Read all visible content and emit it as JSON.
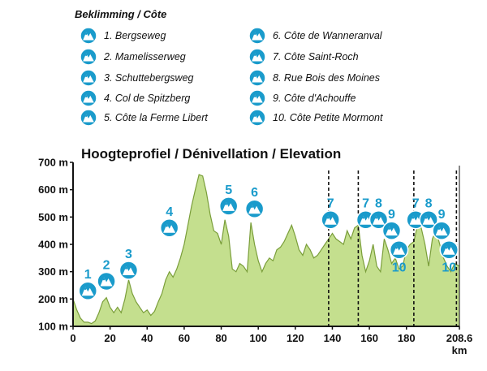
{
  "legend": {
    "title": "Beklimming / Côte",
    "items": [
      {
        "num": 1,
        "label": "1. Bergseweg"
      },
      {
        "num": 2,
        "label": "2. Mamelisserweg"
      },
      {
        "num": 3,
        "label": "3. Schuttebergsweg"
      },
      {
        "num": 4,
        "label": "4. Col de Spitzberg"
      },
      {
        "num": 5,
        "label": "5. Côte la Ferme Libert"
      },
      {
        "num": 6,
        "label": "6. Côte de Wanneranval"
      },
      {
        "num": 7,
        "label": "7. Côte Saint-Roch"
      },
      {
        "num": 8,
        "label": "8. Rue Bois des Moines"
      },
      {
        "num": 9,
        "label": "9. Côte d'Achouffe"
      },
      {
        "num": 10,
        "label": "10. Côte Petite Mormont"
      }
    ]
  },
  "colors": {
    "fill": "#c4df8e",
    "line": "#7a9e3a",
    "marker": "#1a9bcb",
    "axis": "#111111"
  },
  "icons": {
    "climb": "mountain-badge-icon"
  },
  "chart_data": {
    "type": "area",
    "title": "Hoogteprofiel / Dénivellation / Elevation",
    "xlabel": "km",
    "ylabel": "",
    "xlim": [
      0,
      208.6
    ],
    "ylim": [
      100,
      700
    ],
    "yticks": [
      100,
      200,
      300,
      400,
      500,
      600,
      700
    ],
    "ytick_labels": [
      "100 m",
      "200 m",
      "300 m",
      "400 m",
      "500 m",
      "600 m",
      "700 m"
    ],
    "xticks": [
      0,
      20,
      40,
      60,
      80,
      100,
      120,
      140,
      160,
      180,
      208.6
    ],
    "xtick_labels": [
      "0",
      "20",
      "40",
      "60",
      "80",
      "100",
      "120",
      "140",
      "160",
      "180",
      "208.6"
    ],
    "local_lap_lines_km": [
      138,
      154,
      184,
      207
    ],
    "profile": {
      "x": [
        0,
        2,
        4,
        6,
        8,
        10,
        12,
        14,
        16,
        18,
        20,
        22,
        24,
        26,
        28,
        30,
        32,
        34,
        36,
        38,
        40,
        42,
        44,
        46,
        48,
        50,
        52,
        54,
        56,
        58,
        60,
        62,
        64,
        66,
        68,
        70,
        72,
        74,
        76,
        78,
        80,
        82,
        84,
        86,
        88,
        90,
        92,
        94,
        96,
        98,
        100,
        102,
        104,
        106,
        108,
        110,
        112,
        114,
        116,
        118,
        120,
        122,
        124,
        126,
        128,
        130,
        132,
        134,
        136,
        138,
        140,
        142,
        144,
        146,
        148,
        150,
        152,
        154,
        156,
        158,
        160,
        162,
        164,
        166,
        168,
        170,
        172,
        174,
        176,
        178,
        180,
        182,
        184,
        186,
        188,
        190,
        192,
        194,
        196,
        198,
        200,
        202,
        204,
        206,
        208.6
      ],
      "y": [
        200,
        160,
        130,
        115,
        115,
        110,
        120,
        150,
        190,
        205,
        170,
        150,
        170,
        150,
        200,
        270,
        220,
        190,
        170,
        150,
        160,
        140,
        155,
        190,
        220,
        270,
        300,
        280,
        310,
        350,
        400,
        470,
        540,
        600,
        655,
        650,
        590,
        510,
        450,
        440,
        400,
        490,
        430,
        310,
        300,
        330,
        320,
        300,
        480,
        400,
        340,
        300,
        330,
        350,
        340,
        380,
        390,
        410,
        440,
        470,
        430,
        380,
        360,
        400,
        380,
        350,
        360,
        380,
        400,
        420,
        440,
        420,
        410,
        400,
        450,
        420,
        460,
        470,
        360,
        300,
        340,
        400,
        320,
        300,
        420,
        380,
        330,
        350,
        310,
        320,
        380,
        400,
        410,
        470,
        460,
        400,
        320,
        420,
        450,
        400,
        350,
        320,
        300,
        330,
        320
      ]
    },
    "markers": [
      {
        "num": "1",
        "km": 8,
        "elev": 230,
        "label_pos": "above"
      },
      {
        "num": "2",
        "km": 18,
        "elev": 265,
        "label_pos": "above"
      },
      {
        "num": "3",
        "km": 30,
        "elev": 305,
        "label_pos": "above"
      },
      {
        "num": "4",
        "km": 52,
        "elev": 460,
        "label_pos": "above"
      },
      {
        "num": "5",
        "km": 84,
        "elev": 540,
        "label_pos": "above"
      },
      {
        "num": "6",
        "km": 98,
        "elev": 530,
        "label_pos": "above"
      },
      {
        "num": "7",
        "km": 139,
        "elev": 490,
        "label_pos": "above"
      },
      {
        "num": "7",
        "km": 158,
        "elev": 490,
        "label_pos": "above"
      },
      {
        "num": "8",
        "km": 165,
        "elev": 490,
        "label_pos": "above"
      },
      {
        "num": "9",
        "km": 172,
        "elev": 450,
        "label_pos": "above"
      },
      {
        "num": "10",
        "km": 176,
        "elev": 380,
        "label_pos": "below"
      },
      {
        "num": "7",
        "km": 185,
        "elev": 490,
        "label_pos": "above"
      },
      {
        "num": "8",
        "km": 192,
        "elev": 490,
        "label_pos": "above"
      },
      {
        "num": "9",
        "km": 199,
        "elev": 450,
        "label_pos": "above"
      },
      {
        "num": "10",
        "km": 203,
        "elev": 380,
        "label_pos": "below"
      }
    ]
  }
}
